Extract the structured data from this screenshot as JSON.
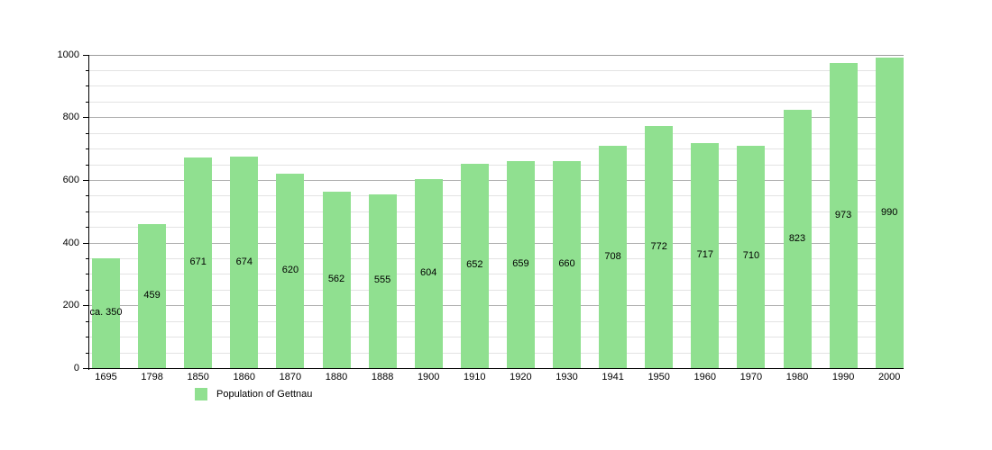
{
  "chart_data": {
    "type": "bar",
    "title": "",
    "xlabel": "",
    "ylabel": "",
    "legend": {
      "label": "Population of Gettnau",
      "position": "bottom"
    },
    "categories": [
      "1695",
      "1798",
      "1850",
      "1860",
      "1870",
      "1880",
      "1888",
      "1900",
      "1910",
      "1920",
      "1930",
      "1941",
      "1950",
      "1960",
      "1970",
      "1980",
      "1990",
      "2000"
    ],
    "values": [
      350,
      459,
      671,
      674,
      620,
      562,
      555,
      604,
      652,
      659,
      660,
      708,
      772,
      717,
      710,
      823,
      973,
      990
    ],
    "value_labels": [
      "ca. 350",
      "459",
      "671",
      "674",
      "620",
      "562",
      "555",
      "604",
      "652",
      "659",
      "660",
      "708",
      "772",
      "717",
      "710",
      "823",
      "973",
      "990"
    ],
    "ylim": [
      0,
      1000
    ],
    "y_major_step": 200,
    "y_minor_step": 50,
    "y_tick_labels": [
      "0",
      "200",
      "400",
      "600",
      "800",
      "1000"
    ],
    "grid": true,
    "colors": {
      "bar": "#90e090",
      "grid_major": "#b0b0b0",
      "grid_minor": "#e3e3e3",
      "grid_top": "#9c9c9c",
      "axis": "#000000",
      "text": "#000000",
      "background": "#ffffff"
    }
  }
}
